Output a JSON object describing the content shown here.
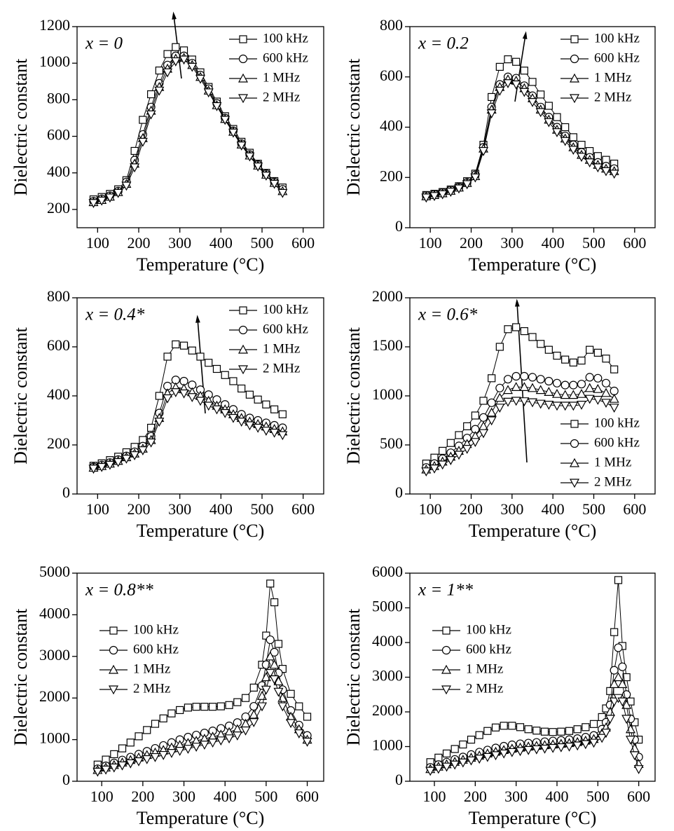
{
  "chart_data": [
    {
      "type": "line",
      "annotation": "x = 0",
      "xlabel": "Temperature (°C)",
      "ylabel": "Dielectric constant",
      "x": [
        90,
        110,
        130,
        150,
        170,
        190,
        210,
        230,
        250,
        270,
        290,
        310,
        330,
        350,
        370,
        390,
        410,
        430,
        450,
        470,
        490,
        510,
        530,
        550
      ],
      "xlim": [
        50,
        650
      ],
      "ylim": [
        100,
        1200
      ],
      "xticks": [
        100,
        200,
        300,
        400,
        500,
        600
      ],
      "yticks": [
        200,
        400,
        600,
        800,
        1000,
        1200
      ],
      "legend": "upper right",
      "series": [
        {
          "name": "100 kHz",
          "marker": "square",
          "color": "#000000",
          "values": [
            255,
            268,
            285,
            310,
            360,
            520,
            690,
            830,
            960,
            1050,
            1088,
            1070,
            1020,
            950,
            870,
            790,
            710,
            640,
            570,
            510,
            450,
            400,
            355,
            320
          ]
        },
        {
          "name": "600 kHz",
          "marker": "circle",
          "color": "#000000",
          "values": [
            245,
            258,
            275,
            300,
            350,
            470,
            610,
            760,
            890,
            990,
            1040,
            1040,
            1000,
            935,
            860,
            780,
            700,
            630,
            560,
            500,
            445,
            395,
            350,
            310
          ]
        },
        {
          "name": "1 MHz",
          "marker": "triangle-up",
          "color": "#000000",
          "values": [
            240,
            252,
            270,
            295,
            340,
            450,
            590,
            740,
            870,
            970,
            1025,
            1030,
            990,
            925,
            850,
            770,
            695,
            625,
            555,
            495,
            440,
            390,
            345,
            300
          ]
        },
        {
          "name": "2 MHz",
          "marker": "triangle-down",
          "color": "#000000",
          "values": [
            235,
            248,
            265,
            290,
            330,
            430,
            570,
            720,
            850,
            950,
            1010,
            1020,
            980,
            915,
            840,
            765,
            690,
            620,
            550,
            490,
            435,
            385,
            340,
            290
          ]
        }
      ]
    },
    {
      "type": "line",
      "annotation": "x = 0.2",
      "xlabel": "Temperature (°C)",
      "ylabel": "Dielectric constant",
      "x": [
        90,
        110,
        130,
        150,
        170,
        190,
        210,
        230,
        250,
        270,
        290,
        310,
        330,
        350,
        370,
        390,
        410,
        430,
        450,
        470,
        490,
        510,
        530,
        550
      ],
      "xlim": [
        50,
        650
      ],
      "ylim": [
        0,
        800
      ],
      "xticks": [
        100,
        200,
        300,
        400,
        500,
        600
      ],
      "yticks": [
        0,
        200,
        400,
        600,
        800
      ],
      "legend": "upper right",
      "series": [
        {
          "name": "100 kHz",
          "marker": "square",
          "color": "#000000",
          "values": [
            130,
            135,
            142,
            152,
            165,
            185,
            215,
            330,
            520,
            640,
            670,
            660,
            625,
            580,
            530,
            485,
            440,
            400,
            360,
            330,
            305,
            285,
            270,
            255
          ]
        },
        {
          "name": "600 kHz",
          "marker": "circle",
          "color": "#000000",
          "values": [
            128,
            133,
            140,
            150,
            162,
            180,
            210,
            320,
            480,
            570,
            600,
            595,
            565,
            525,
            480,
            440,
            400,
            365,
            330,
            300,
            280,
            260,
            245,
            235
          ]
        },
        {
          "name": "1 MHz",
          "marker": "triangle-up",
          "color": "#000000",
          "values": [
            125,
            130,
            137,
            147,
            160,
            178,
            205,
            315,
            470,
            560,
            590,
            585,
            555,
            515,
            470,
            430,
            390,
            355,
            320,
            290,
            270,
            250,
            235,
            225
          ]
        },
        {
          "name": "2 MHz",
          "marker": "triangle-down",
          "color": "#000000",
          "values": [
            120,
            126,
            133,
            143,
            156,
            173,
            200,
            305,
            455,
            545,
            575,
            570,
            540,
            500,
            460,
            420,
            380,
            345,
            310,
            282,
            260,
            240,
            225,
            215
          ]
        }
      ]
    },
    {
      "type": "line",
      "annotation": "x = 0.4*",
      "xlabel": "Temperature (°C)",
      "ylabel": "Dielectric constant",
      "x": [
        90,
        110,
        130,
        150,
        170,
        190,
        210,
        230,
        250,
        270,
        290,
        310,
        330,
        350,
        370,
        390,
        410,
        430,
        450,
        470,
        490,
        510,
        530,
        550
      ],
      "xlim": [
        50,
        650
      ],
      "ylim": [
        0,
        800
      ],
      "xticks": [
        100,
        200,
        300,
        400,
        500,
        600
      ],
      "yticks": [
        0,
        200,
        400,
        600,
        800
      ],
      "legend": "upper right",
      "series": [
        {
          "name": "100 kHz",
          "marker": "square",
          "color": "#000000",
          "values": [
            115,
            125,
            138,
            152,
            170,
            192,
            220,
            270,
            400,
            560,
            610,
            605,
            585,
            560,
            535,
            510,
            485,
            460,
            430,
            405,
            385,
            365,
            345,
            325
          ]
        },
        {
          "name": "600 kHz",
          "marker": "circle",
          "color": "#000000",
          "values": [
            110,
            118,
            128,
            140,
            155,
            172,
            195,
            235,
            330,
            440,
            465,
            460,
            445,
            425,
            405,
            385,
            365,
            345,
            325,
            310,
            300,
            290,
            280,
            270
          ]
        },
        {
          "name": "1 MHz",
          "marker": "triangle-up",
          "color": "#000000",
          "values": [
            107,
            114,
            124,
            135,
            150,
            165,
            185,
            220,
            310,
            410,
            435,
            430,
            415,
            400,
            380,
            360,
            345,
            325,
            310,
            295,
            285,
            275,
            265,
            255
          ]
        },
        {
          "name": "2 MHz",
          "marker": "triangle-down",
          "color": "#000000",
          "values": [
            103,
            110,
            119,
            130,
            144,
            158,
            178,
            210,
            295,
            390,
            415,
            410,
            395,
            380,
            360,
            345,
            330,
            310,
            295,
            280,
            270,
            258,
            250,
            240
          ]
        }
      ]
    },
    {
      "type": "line",
      "annotation": "x = 0.6*",
      "xlabel": "Temperature (°C)",
      "ylabel": "Dielectric constant",
      "x": [
        90,
        110,
        130,
        150,
        170,
        190,
        210,
        230,
        250,
        270,
        290,
        310,
        330,
        350,
        370,
        390,
        410,
        430,
        450,
        470,
        490,
        510,
        530,
        550
      ],
      "xlim": [
        50,
        650
      ],
      "ylim": [
        0,
        2000
      ],
      "xticks": [
        100,
        200,
        300,
        400,
        500,
        600
      ],
      "yticks": [
        0,
        500,
        1000,
        1500,
        2000
      ],
      "legend": "lower right",
      "series": [
        {
          "name": "100 kHz",
          "marker": "square",
          "color": "#000000",
          "values": [
            310,
            370,
            440,
            520,
            600,
            690,
            800,
            950,
            1180,
            1500,
            1680,
            1700,
            1660,
            1600,
            1530,
            1470,
            1410,
            1370,
            1340,
            1360,
            1470,
            1440,
            1380,
            1270
          ]
        },
        {
          "name": "600 kHz",
          "marker": "circle",
          "color": "#000000",
          "values": [
            270,
            310,
            360,
            420,
            490,
            570,
            660,
            780,
            930,
            1080,
            1170,
            1200,
            1200,
            1190,
            1170,
            1150,
            1130,
            1110,
            1110,
            1120,
            1190,
            1180,
            1130,
            1050
          ]
        },
        {
          "name": "1 MHz",
          "marker": "triangle-up",
          "color": "#000000",
          "values": [
            250,
            285,
            330,
            380,
            440,
            510,
            590,
            690,
            830,
            980,
            1060,
            1090,
            1090,
            1080,
            1060,
            1040,
            1020,
            1010,
            1010,
            1020,
            1080,
            1070,
            1030,
            970
          ]
        },
        {
          "name": "2 MHz",
          "marker": "triangle-down",
          "color": "#000000",
          "values": [
            230,
            260,
            300,
            345,
            400,
            460,
            530,
            620,
            750,
            880,
            940,
            950,
            945,
            935,
            920,
            910,
            900,
            900,
            900,
            910,
            970,
            960,
            930,
            880
          ]
        }
      ]
    },
    {
      "type": "line",
      "annotation": "x = 0.8**",
      "xlabel": "Temperature (°C)",
      "ylabel": "Dielectric constant",
      "x": [
        90,
        110,
        130,
        150,
        170,
        190,
        210,
        230,
        250,
        270,
        290,
        310,
        330,
        350,
        370,
        390,
        410,
        430,
        450,
        470,
        490,
        500,
        510,
        520,
        530,
        540,
        560,
        580,
        600
      ],
      "xlim": [
        40,
        640
      ],
      "ylim": [
        0,
        5000
      ],
      "xticks": [
        100,
        200,
        300,
        400,
        500,
        600
      ],
      "yticks": [
        0,
        1000,
        2000,
        3000,
        4000,
        5000
      ],
      "legend": "center left",
      "series": [
        {
          "name": "100 kHz",
          "marker": "square",
          "color": "#000000",
          "values": [
            400,
            520,
            650,
            790,
            930,
            1080,
            1230,
            1380,
            1510,
            1630,
            1710,
            1770,
            1790,
            1790,
            1790,
            1800,
            1830,
            1900,
            2000,
            2250,
            2800,
            3500,
            4750,
            4300,
            3300,
            2700,
            2100,
            1800,
            1550
          ]
        },
        {
          "name": "600 kHz",
          "marker": "circle",
          "color": "#000000",
          "values": [
            300,
            370,
            440,
            510,
            580,
            650,
            720,
            790,
            860,
            930,
            1000,
            1060,
            1110,
            1160,
            1210,
            1270,
            1330,
            1410,
            1550,
            1800,
            2300,
            2800,
            3400,
            3100,
            2600,
            2200,
            1700,
            1350,
            1100
          ]
        },
        {
          "name": "1 MHz",
          "marker": "triangle-up",
          "color": "#000000",
          "values": [
            270,
            330,
            390,
            450,
            510,
            570,
            630,
            690,
            750,
            810,
            870,
            920,
            970,
            1020,
            1070,
            1120,
            1180,
            1250,
            1380,
            1600,
            2050,
            2500,
            3000,
            2800,
            2400,
            2000,
            1550,
            1250,
            1000
          ]
        },
        {
          "name": "2 MHz",
          "marker": "triangle-down",
          "color": "#000000",
          "values": [
            230,
            280,
            330,
            380,
            430,
            480,
            530,
            580,
            630,
            680,
            730,
            780,
            830,
            880,
            930,
            980,
            1030,
            1100,
            1220,
            1420,
            1800,
            2200,
            2600,
            2450,
            2150,
            1800,
            1400,
            1150,
            950
          ]
        }
      ]
    },
    {
      "type": "line",
      "annotation": "x = 1**",
      "xlabel": "Temperature (°C)",
      "ylabel": "Dielectric constant",
      "x": [
        90,
        110,
        130,
        150,
        170,
        190,
        210,
        230,
        250,
        270,
        290,
        310,
        330,
        350,
        370,
        390,
        410,
        430,
        450,
        470,
        490,
        510,
        520,
        530,
        540,
        550,
        560,
        570,
        580,
        590,
        600
      ],
      "xlim": [
        40,
        640
      ],
      "ylim": [
        0,
        6000
      ],
      "xticks": [
        100,
        200,
        300,
        400,
        500,
        600
      ],
      "yticks": [
        0,
        1000,
        2000,
        3000,
        4000,
        5000,
        6000
      ],
      "legend": "center left",
      "series": [
        {
          "name": "100 kHz",
          "marker": "square",
          "color": "#000000",
          "values": [
            550,
            680,
            800,
            930,
            1060,
            1200,
            1330,
            1450,
            1550,
            1600,
            1600,
            1560,
            1500,
            1460,
            1430,
            1420,
            1430,
            1450,
            1500,
            1560,
            1650,
            1850,
            2100,
            2600,
            4300,
            5800,
            3900,
            3000,
            2300,
            1700,
            1200
          ]
        },
        {
          "name": "600 kHz",
          "marker": "circle",
          "color": "#000000",
          "values": [
            400,
            480,
            550,
            630,
            700,
            770,
            840,
            900,
            960,
            1010,
            1050,
            1080,
            1100,
            1120,
            1140,
            1160,
            1180,
            1200,
            1230,
            1270,
            1320,
            1500,
            1700,
            2200,
            3200,
            3850,
            3300,
            2500,
            1800,
            1200,
            700
          ]
        },
        {
          "name": "1 MHz",
          "marker": "triangle-up",
          "color": "#000000",
          "values": [
            350,
            420,
            490,
            560,
            620,
            680,
            740,
            800,
            850,
            900,
            940,
            970,
            1000,
            1020,
            1040,
            1060,
            1080,
            1100,
            1130,
            1170,
            1220,
            1380,
            1550,
            2000,
            2800,
            3000,
            2800,
            2200,
            1500,
            950,
            500
          ]
        },
        {
          "name": "2 MHz",
          "marker": "triangle-down",
          "color": "#000000",
          "values": [
            300,
            360,
            420,
            480,
            540,
            600,
            650,
            700,
            750,
            800,
            840,
            870,
            900,
            920,
            940,
            960,
            980,
            1000,
            1030,
            1070,
            1110,
            1250,
            1400,
            1800,
            2300,
            2400,
            2300,
            1800,
            1200,
            750,
            350
          ]
        }
      ]
    }
  ]
}
